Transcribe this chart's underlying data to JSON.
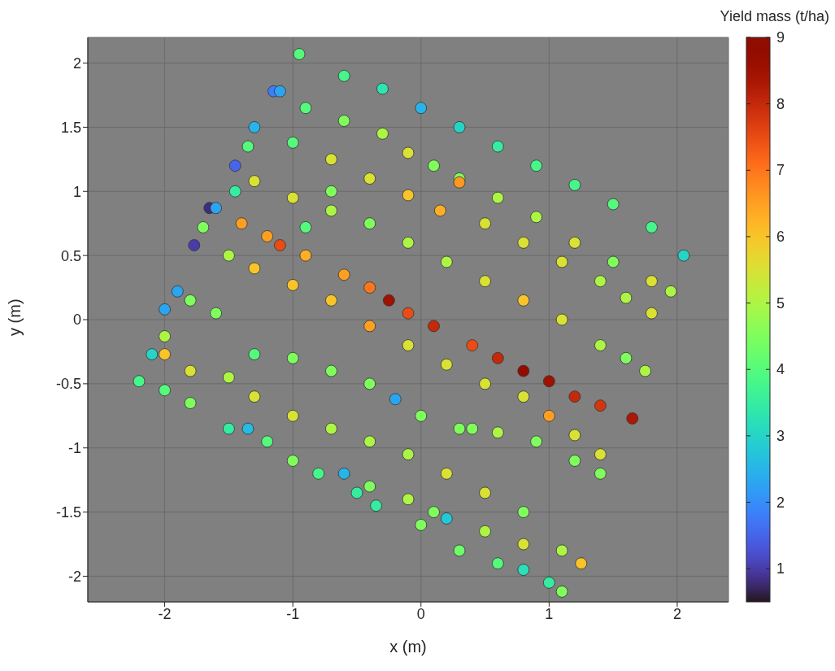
{
  "chart_data": {
    "type": "scatter",
    "xlabel": "x (m)",
    "ylabel": "y (m)",
    "clabel": "Yield mass (t/ha)",
    "xlim": [
      -2.6,
      2.4
    ],
    "xticks": [
      -2,
      -1,
      0,
      1,
      2
    ],
    "ylim": [
      -2.2,
      2.2
    ],
    "yticks": [
      -2,
      -1.5,
      -1,
      -0.5,
      0,
      0.5,
      1,
      1.5,
      2
    ],
    "clim": [
      0.5,
      9
    ],
    "cticks": [
      1,
      2,
      3,
      4,
      5,
      6,
      7,
      8,
      9
    ],
    "grid": true,
    "marker": "circle",
    "x": [
      -0.95,
      -0.6,
      -0.3,
      0,
      0.3,
      0.6,
      0.9,
      1.2,
      1.5,
      1.8,
      2.05,
      -1.15,
      -1.1,
      -0.9,
      -0.6,
      -0.3,
      -0.1,
      0.1,
      0.3,
      0.6,
      0.9,
      1.2,
      1.5,
      1.8,
      1.95,
      -1.3,
      -1.0,
      -0.7,
      -0.4,
      -0.1,
      0.15,
      0.3,
      0.5,
      0.8,
      1.1,
      1.4,
      1.6,
      1.8,
      -1.45,
      -1.3,
      -1.0,
      -0.7,
      -0.4,
      -0.1,
      0.2,
      0.5,
      0.8,
      1.1,
      1.4,
      1.6,
      1.75,
      -1.65,
      -1.6,
      -1.4,
      -1.2,
      -1.1,
      -0.9,
      -0.6,
      -0.4,
      -0.25,
      -0.1,
      0.1,
      0.4,
      0.6,
      0.8,
      1.0,
      1.2,
      1.4,
      1.65,
      -1.77,
      -1.5,
      -1.3,
      -1.0,
      -0.7,
      -0.4,
      -0.1,
      0.2,
      0.5,
      0.8,
      1.0,
      1.2,
      1.4,
      -1.9,
      -2.0,
      -1.8,
      -1.6,
      -1.3,
      -1.0,
      -0.7,
      -0.4,
      -0.2,
      0.0,
      0.3,
      0.6,
      0.9,
      1.2,
      1.4,
      -2.1,
      -2.0,
      -1.8,
      -1.5,
      -1.3,
      -1.0,
      -0.7,
      -0.4,
      -0.1,
      0.2,
      0.5,
      0.8,
      -2.2,
      -2.0,
      -1.8,
      -1.5,
      -1.35,
      -1.2,
      -1.0,
      -0.8,
      -0.6,
      -0.4,
      -0.1,
      0.1,
      0.2,
      0.5,
      0.8,
      1.1,
      1.25,
      -0.5,
      -0.35,
      0.0,
      0.3,
      0.6,
      0.8,
      1.0,
      1.1,
      -2.0,
      -1.7,
      -1.45,
      -1.35,
      -0.9,
      -0.7,
      0.4
    ],
    "values": [
      2.07,
      1.9,
      1.8,
      1.65,
      1.5,
      1.35,
      1.2,
      1.05,
      0.9,
      0.72,
      0.5,
      1.78,
      1.78,
      1.65,
      1.55,
      1.45,
      1.3,
      1.2,
      1.1,
      0.95,
      0.8,
      0.6,
      0.45,
      0.3,
      0.22,
      1.5,
      1.38,
      1.25,
      1.1,
      0.97,
      0.85,
      1.07,
      0.75,
      0.6,
      0.45,
      0.3,
      0.17,
      0.05,
      1.2,
      1.08,
      0.95,
      0.85,
      0.75,
      0.6,
      0.45,
      0.3,
      0.15,
      0,
      -0.2,
      -0.3,
      -0.4,
      0.87,
      0.87,
      0.75,
      0.65,
      0.58,
      0.5,
      0.35,
      0.25,
      0.15,
      0.05,
      -0.05,
      -0.2,
      -0.3,
      -0.4,
      -0.48,
      -0.6,
      -0.67,
      -0.77,
      0.58,
      0.5,
      0.4,
      0.27,
      0.15,
      -0.05,
      -0.2,
      -0.35,
      -0.5,
      -0.6,
      -0.75,
      -0.9,
      -1.05,
      0.22,
      0.08,
      0.15,
      0.05,
      -0.27,
      -0.3,
      -0.4,
      -0.5,
      -0.62,
      -0.75,
      -0.85,
      -0.88,
      -0.95,
      -1.1,
      -1.2,
      -0.27,
      -0.27,
      -0.4,
      -0.45,
      -0.6,
      -0.75,
      -0.85,
      -0.95,
      -1.05,
      -1.2,
      -1.35,
      -1.5,
      -0.48,
      -0.55,
      -0.65,
      -0.85,
      -0.85,
      -0.95,
      -1.1,
      -1.2,
      -1.2,
      -1.3,
      -1.4,
      -1.5,
      -1.55,
      -1.65,
      -1.75,
      -1.8,
      -1.9,
      -1.35,
      -1.45,
      -1.6,
      -1.8,
      -1.9,
      -1.95,
      -2.05,
      -2.12,
      -0.13,
      0.72,
      1.0,
      1.35,
      0.72,
      1.0,
      -0.85
    ],
    "cvalues": [
      4,
      3.8,
      3.3,
      2.5,
      3,
      3.5,
      3.8,
      3.8,
      4,
      3.8,
      3,
      1.8,
      2.3,
      4,
      4.5,
      5,
      5.5,
      4.5,
      4.5,
      5,
      5,
      5.5,
      4.5,
      5.5,
      5,
      2.5,
      4,
      5.5,
      5.5,
      6,
      6.3,
      6.6,
      5.5,
      5.5,
      5.5,
      5,
      5,
      5.5,
      1.5,
      5.5,
      5.5,
      5,
      4.5,
      5,
      5,
      5.5,
      6,
      5.5,
      5,
      4.5,
      5,
      0.8,
      2.3,
      6.5,
      6.5,
      7.5,
      6.3,
      6.5,
      7,
      8.5,
      7.5,
      8,
      7.5,
      8,
      8.8,
      8.5,
      8,
      7.8,
      8.3,
      1,
      5,
      6,
      6,
      6,
      6.5,
      5.5,
      5.5,
      5.5,
      5.5,
      6.5,
      5.5,
      5.5,
      2.3,
      2.3,
      4.5,
      4.5,
      4,
      4.5,
      4.5,
      4.5,
      2.3,
      4.5,
      4.5,
      5,
      4.5,
      4.5,
      4.5,
      3,
      6,
      5.5,
      5,
      5.5,
      5.5,
      5,
      5,
      5,
      5.5,
      5.5,
      4.5,
      3.8,
      4,
      4.5,
      3.5,
      2.6,
      4,
      4.5,
      3.8,
      2.5,
      4.5,
      5,
      4.5,
      2.8,
      5,
      5.5,
      5,
      6,
      3.5,
      3.5,
      4.5,
      4.3,
      4,
      3.2,
      3.5,
      4.5,
      5,
      4.5,
      3.5,
      4,
      4,
      4.5,
      4.5
    ]
  }
}
